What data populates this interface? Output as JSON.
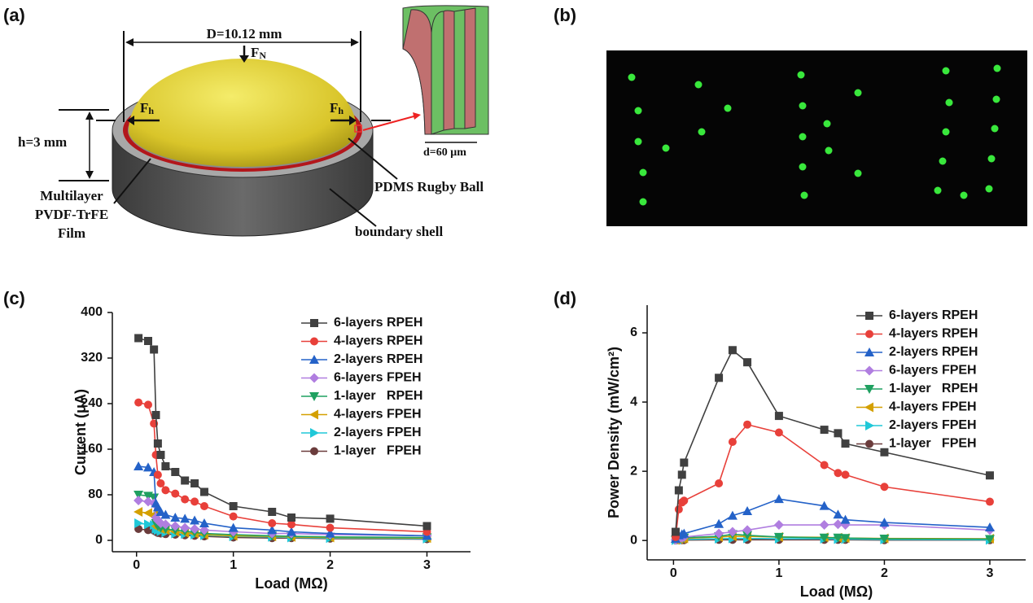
{
  "panel_labels": [
    "(a)",
    "(b)",
    "(c)",
    "(d)"
  ],
  "diagram": {
    "diameter": "D=10.12 mm",
    "force_normal": {
      "symbol": "F",
      "subscript": "N"
    },
    "force_left": {
      "symbol": "F",
      "subscript": "h"
    },
    "force_right": {
      "symbol": "F",
      "subscript": "h"
    },
    "height": "h=3 mm",
    "film": [
      "Multilayer",
      "PVDF-TrFE",
      "Film"
    ],
    "ball": "PDMS Rugby Ball",
    "shell": "boundary shell",
    "thickness": "d=60 μm"
  },
  "chart_data": [
    {
      "type": "line",
      "x_label": "Load (MΩ)",
      "y_label": "Current (μA)",
      "xlim": [
        -0.25,
        3.45
      ],
      "ylim": [
        -20,
        400
      ],
      "xticks": [
        0,
        1,
        2,
        3
      ],
      "yticks": [
        0,
        80,
        160,
        240,
        320,
        400
      ],
      "legend": "upper right",
      "x": [
        0.02,
        0.12,
        0.18,
        0.2,
        0.22,
        0.25,
        0.3,
        0.4,
        0.5,
        0.6,
        0.7,
        1,
        1.4,
        1.6,
        2,
        3
      ],
      "series": [
        {
          "name": "6-layers RPEH",
          "color": "#404040",
          "marker": "square",
          "values": [
            355,
            350,
            335,
            220,
            170,
            150,
            130,
            120,
            105,
            100,
            85,
            60,
            50,
            40,
            38,
            25
          ]
        },
        {
          "name": "4-layers RPEH",
          "color": "#e8403a",
          "marker": "circle",
          "values": [
            242,
            238,
            205,
            150,
            115,
            100,
            88,
            82,
            72,
            68,
            60,
            42,
            30,
            28,
            22,
            15
          ]
        },
        {
          "name": "2-layers RPEH",
          "color": "#2462c8",
          "marker": "triangle-up",
          "values": [
            130,
            128,
            120,
            65,
            58,
            50,
            45,
            40,
            38,
            35,
            30,
            22,
            18,
            15,
            12,
            8
          ]
        },
        {
          "name": "6-layers FPEH",
          "color": "#b07ee0",
          "marker": "diamond",
          "values": [
            70,
            68,
            65,
            40,
            35,
            30,
            28,
            25,
            22,
            20,
            18,
            15,
            12,
            12,
            10,
            8
          ]
        },
        {
          "name": "1-layer   RPEH",
          "color": "#1fa060",
          "marker": "triangle-down",
          "values": [
            80,
            78,
            75,
            30,
            25,
            22,
            20,
            18,
            16,
            14,
            12,
            10,
            8,
            7,
            6,
            5
          ]
        },
        {
          "name": "4-layers FPEH",
          "color": "#d4a000",
          "marker": "triangle-left",
          "values": [
            50,
            48,
            45,
            25,
            22,
            20,
            18,
            15,
            13,
            12,
            10,
            8,
            7,
            6,
            5,
            4
          ]
        },
        {
          "name": "2-layers FPEH",
          "color": "#20c8d8",
          "marker": "triangle-right",
          "values": [
            30,
            28,
            27,
            20,
            18,
            16,
            14,
            12,
            11,
            10,
            9,
            7,
            6,
            5,
            4,
            3
          ]
        },
        {
          "name": "1-layer   FPEH",
          "color": "#6b3c3c",
          "marker": "circle",
          "values": [
            20,
            18,
            17,
            15,
            13,
            12,
            11,
            10,
            9,
            8,
            7,
            5,
            4,
            4,
            3,
            2
          ]
        }
      ]
    },
    {
      "type": "line",
      "x_label": "Load (MΩ)",
      "y_label": "Power Density (mW/cm²)",
      "xlim": [
        -0.25,
        3.34
      ],
      "ylim": [
        -0.56,
        6.8
      ],
      "xticks": [
        0,
        1,
        2,
        3
      ],
      "yticks": [
        0,
        2,
        4,
        6
      ],
      "legend": "upper right",
      "x": [
        0.02,
        0.05,
        0.08,
        0.1,
        0.43,
        0.56,
        0.7,
        1,
        1.43,
        1.56,
        1.63,
        2,
        3
      ],
      "series": [
        {
          "name": "6-layers RPEH",
          "color": "#404040",
          "marker": "square",
          "values": [
            0.25,
            1.45,
            1.9,
            2.25,
            4.7,
            5.5,
            5.15,
            3.6,
            3.2,
            3.1,
            2.8,
            2.55,
            1.88
          ]
        },
        {
          "name": "4-layers RPEH",
          "color": "#e8403a",
          "marker": "circle",
          "values": [
            0.1,
            0.9,
            1.1,
            1.15,
            1.65,
            2.85,
            3.35,
            3.12,
            2.18,
            1.95,
            1.9,
            1.55,
            1.12
          ]
        },
        {
          "name": "2-layers RPEH",
          "color": "#2462c8",
          "marker": "triangle-up",
          "values": [
            0.05,
            0.15,
            0.18,
            0.2,
            0.48,
            0.72,
            0.85,
            1.2,
            1.0,
            0.75,
            0.6,
            0.52,
            0.38
          ]
        },
        {
          "name": "6-layers FPEH",
          "color": "#b07ee0",
          "marker": "diamond",
          "values": [
            0.02,
            0.05,
            0.08,
            0.1,
            0.2,
            0.25,
            0.3,
            0.45,
            0.45,
            0.47,
            0.45,
            0.45,
            0.3
          ]
        },
        {
          "name": "1-layer   RPEH",
          "color": "#1fa060",
          "marker": "triangle-down",
          "values": [
            0.02,
            0.05,
            0.07,
            0.08,
            0.12,
            0.18,
            0.15,
            0.1,
            0.08,
            0.08,
            0.07,
            0.05,
            0.04
          ]
        },
        {
          "name": "4-layers FPEH",
          "color": "#d4a000",
          "marker": "triangle-left",
          "values": [
            0.02,
            0.04,
            0.05,
            0.06,
            0.1,
            0.12,
            0.12,
            0.1,
            0.09,
            0.08,
            0.07,
            0.06,
            0.05
          ]
        },
        {
          "name": "2-layers FPEH",
          "color": "#20c8d8",
          "marker": "triangle-right",
          "values": [
            0.01,
            0.02,
            0.03,
            0.03,
            0.05,
            0.06,
            0.06,
            0.05,
            0.05,
            0.04,
            0.04,
            0.03,
            0.02
          ]
        },
        {
          "name": "1-layer   FPEH",
          "color": "#6b3c3c",
          "marker": "circle",
          "values": [
            0.005,
            0.01,
            0.01,
            0.01,
            0.02,
            0.02,
            0.02,
            0.02,
            0.02,
            0.02,
            0.02,
            0.01,
            0.01
          ]
        }
      ]
    }
  ]
}
